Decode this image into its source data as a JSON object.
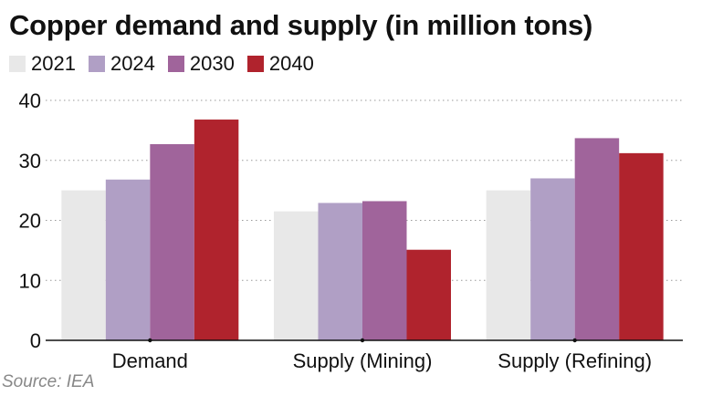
{
  "title": "Copper demand and supply (in million tons)",
  "source": "Source: IEA",
  "chart_data": {
    "type": "bar",
    "title": "Copper demand and supply (in million tons)",
    "xlabel": "",
    "ylabel": "",
    "ylim": [
      0,
      40
    ],
    "yticks": [
      0,
      10,
      20,
      30,
      40
    ],
    "grid": true,
    "legend_position": "top-left",
    "categories": [
      "Demand",
      "Supply (Mining)",
      "Supply (Refining)"
    ],
    "series": [
      {
        "name": "2021",
        "color": "#e8e8e8",
        "values": [
          25.0,
          21.5,
          25.0
        ]
      },
      {
        "name": "2024",
        "color": "#b09fc5",
        "values": [
          26.8,
          22.9,
          27.0
        ]
      },
      {
        "name": "2030",
        "color": "#a0649b",
        "values": [
          32.7,
          23.2,
          33.7
        ]
      },
      {
        "name": "2040",
        "color": "#b0232d",
        "values": [
          36.8,
          15.1,
          31.2
        ]
      }
    ]
  }
}
